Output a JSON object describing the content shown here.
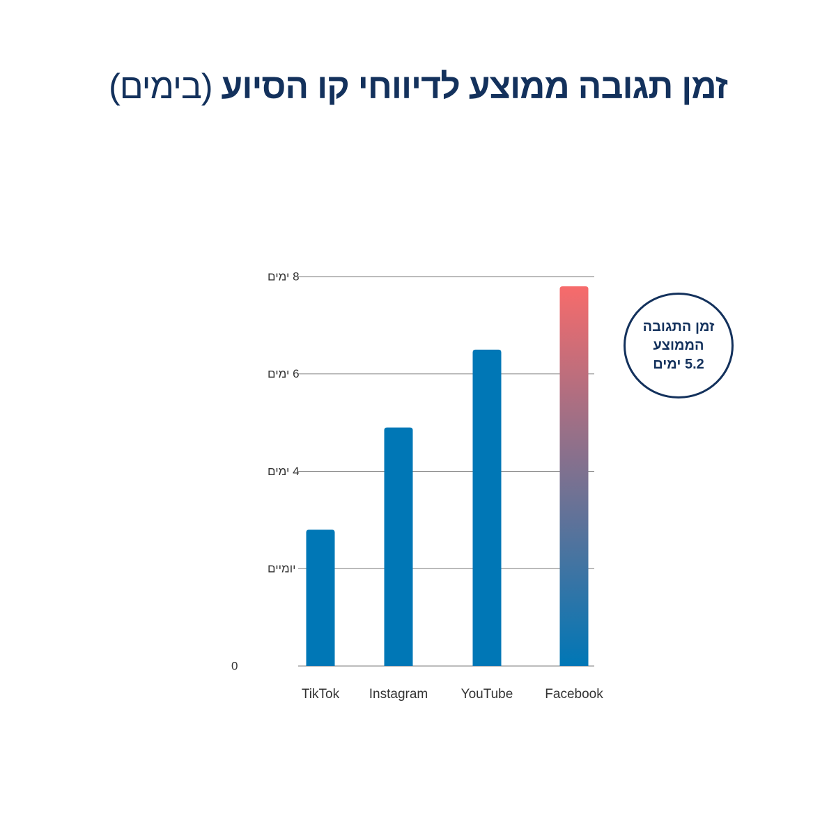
{
  "title": {
    "main": "זמן תגובה ממוצע לדיווחי קו הסיוע",
    "unit": "(בימים)"
  },
  "badge": {
    "line1": "זמן התגובה",
    "line2": "הממוצע",
    "line3": "5.2 ימים"
  },
  "colors": {
    "title": "#13315c",
    "bar": "#0077b6",
    "highlight_top": "#f76b6b",
    "gridline": "#7a7a7a",
    "axis_text": "#333333"
  },
  "chart_data": {
    "type": "bar",
    "categories": [
      "TikTok",
      "Instagram",
      "YouTube",
      "Facebook"
    ],
    "values": [
      2.8,
      4.9,
      6.5,
      7.8
    ],
    "highlight_index": 3,
    "ylim": [
      0,
      8
    ],
    "yticks": [
      {
        "value": 0,
        "label": "0"
      },
      {
        "value": 2,
        "label": "יומיים"
      },
      {
        "value": 4,
        "label": "4 ימים"
      },
      {
        "value": 6,
        "label": "6 ימים"
      },
      {
        "value": 8,
        "label": "8 ימים"
      }
    ],
    "grid": true,
    "legend": "none"
  }
}
